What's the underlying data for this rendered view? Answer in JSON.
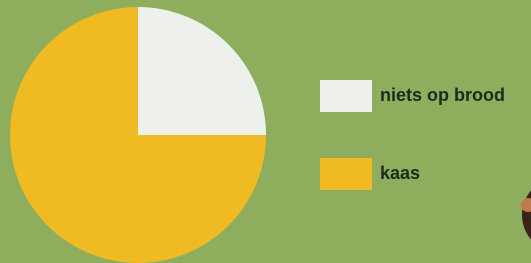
{
  "chart_data": {
    "type": "pie",
    "categories": [
      "niets op brood",
      "kaas"
    ],
    "values": [
      25,
      75
    ],
    "colors": [
      "#eef0ec",
      "#f0bb22"
    ],
    "legend": "right"
  }
}
